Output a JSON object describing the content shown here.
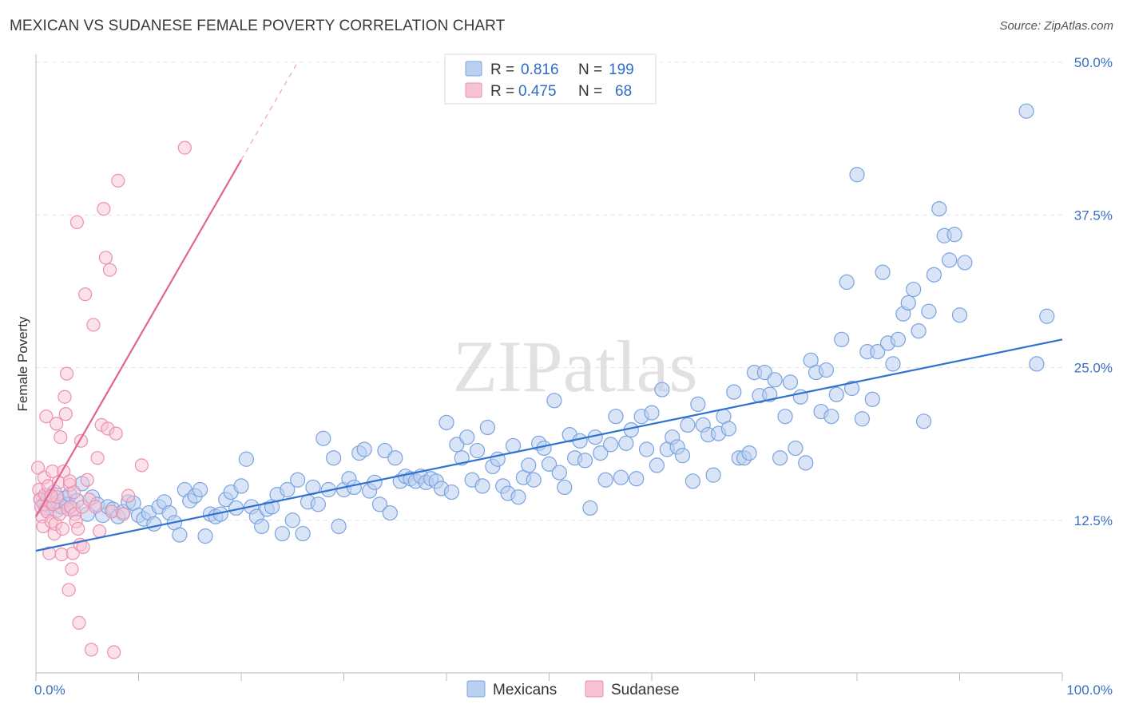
{
  "header": {
    "title": "MEXICAN VS SUDANESE FEMALE POVERTY CORRELATION CHART",
    "source": "Source: ZipAtlas.com"
  },
  "colors": {
    "blue_fill": "#b9d0f1",
    "blue_stroke": "#7aa3e0",
    "blue_line": "#2f72d0",
    "pink_fill": "#f7c3d3",
    "pink_stroke": "#ee8fae",
    "pink_line": "#e2658f",
    "tick_label": "#3a6fc4"
  },
  "chart_data": {
    "type": "scatter",
    "xlabel": "",
    "ylabel": "Female Poverty",
    "xlim": [
      0,
      100
    ],
    "ylim": [
      0,
      50
    ],
    "x_tick_labels": [
      "0.0%",
      "100.0%"
    ],
    "y_ticks": [
      12.5,
      25.0,
      37.5,
      50.0
    ],
    "y_tick_labels": [
      "12.5%",
      "25.0%",
      "37.5%",
      "50.0%"
    ],
    "grid": true,
    "watermark": "ZIPatlas",
    "legend_stats": [
      {
        "r_label": "R =",
        "r_value": "0.816",
        "n_label": "N =",
        "n_value": "199"
      },
      {
        "r_label": "R =",
        "r_value": "0.475",
        "n_label": "N =",
        "n_value": "68"
      }
    ],
    "series": [
      {
        "name": "Mexicans",
        "trend": {
          "x0": 0,
          "y0": 10.0,
          "x1": 100,
          "y1": 27.3
        },
        "points": [
          [
            0.5,
            14.2
          ],
          [
            0.8,
            13.8
          ],
          [
            1.0,
            13.5
          ],
          [
            1.2,
            14.5
          ],
          [
            1.5,
            13.9
          ],
          [
            1.8,
            14.8
          ],
          [
            2.0,
            13.3
          ],
          [
            2.2,
            14.0
          ],
          [
            2.5,
            13.6
          ],
          [
            2.8,
            14.3
          ],
          [
            3.0,
            13.8
          ],
          [
            3.3,
            14.6
          ],
          [
            3.6,
            13.4
          ],
          [
            4.0,
            14.1
          ],
          [
            4.5,
            15.5
          ],
          [
            5.0,
            13.0
          ],
          [
            5.5,
            14.4
          ],
          [
            6.0,
            13.8
          ],
          [
            6.5,
            12.9
          ],
          [
            7.0,
            13.6
          ],
          [
            7.5,
            13.4
          ],
          [
            8.0,
            12.8
          ],
          [
            8.5,
            13.2
          ],
          [
            9.0,
            14.0
          ],
          [
            9.5,
            13.9
          ],
          [
            10.0,
            12.9
          ],
          [
            10.5,
            12.6
          ],
          [
            11.0,
            13.1
          ],
          [
            11.5,
            12.2
          ],
          [
            12.0,
            13.6
          ],
          [
            12.5,
            14.0
          ],
          [
            13.0,
            13.1
          ],
          [
            13.5,
            12.3
          ],
          [
            14.0,
            11.3
          ],
          [
            14.5,
            15.0
          ],
          [
            15.0,
            14.1
          ],
          [
            15.5,
            14.5
          ],
          [
            16.0,
            15.0
          ],
          [
            16.5,
            11.2
          ],
          [
            17.0,
            13.0
          ],
          [
            17.5,
            12.8
          ],
          [
            18.0,
            13.0
          ],
          [
            18.5,
            14.2
          ],
          [
            19.0,
            14.8
          ],
          [
            19.5,
            13.5
          ],
          [
            20.0,
            15.3
          ],
          [
            20.5,
            17.5
          ],
          [
            21.0,
            13.6
          ],
          [
            21.5,
            12.8
          ],
          [
            22.0,
            12.0
          ],
          [
            22.5,
            13.4
          ],
          [
            23.0,
            13.6
          ],
          [
            23.5,
            14.6
          ],
          [
            24.0,
            11.4
          ],
          [
            24.5,
            15.0
          ],
          [
            25.0,
            12.5
          ],
          [
            25.5,
            15.8
          ],
          [
            26.0,
            11.4
          ],
          [
            26.5,
            14.0
          ],
          [
            27.0,
            15.2
          ],
          [
            27.5,
            13.8
          ],
          [
            28.0,
            19.2
          ],
          [
            28.5,
            15.0
          ],
          [
            29.0,
            17.6
          ],
          [
            29.5,
            12.0
          ],
          [
            30.0,
            15.0
          ],
          [
            30.5,
            15.9
          ],
          [
            31.0,
            15.2
          ],
          [
            31.5,
            18.0
          ],
          [
            32.0,
            18.3
          ],
          [
            32.5,
            14.9
          ],
          [
            33.0,
            15.6
          ],
          [
            33.5,
            13.8
          ],
          [
            34.0,
            18.2
          ],
          [
            34.5,
            13.1
          ],
          [
            35.0,
            17.6
          ],
          [
            35.5,
            15.7
          ],
          [
            36.0,
            16.1
          ],
          [
            36.5,
            15.9
          ],
          [
            37.0,
            15.7
          ],
          [
            37.5,
            16.1
          ],
          [
            38.0,
            15.6
          ],
          [
            38.5,
            15.9
          ],
          [
            39.0,
            15.7
          ],
          [
            39.5,
            15.1
          ],
          [
            40.0,
            20.5
          ],
          [
            40.5,
            14.8
          ],
          [
            41.0,
            18.7
          ],
          [
            41.5,
            17.6
          ],
          [
            42.0,
            19.3
          ],
          [
            42.5,
            15.8
          ],
          [
            43.0,
            18.2
          ],
          [
            43.5,
            15.3
          ],
          [
            44.0,
            20.1
          ],
          [
            44.5,
            16.9
          ],
          [
            45.0,
            17.5
          ],
          [
            45.5,
            15.3
          ],
          [
            46.0,
            14.7
          ],
          [
            46.5,
            18.6
          ],
          [
            47.0,
            14.4
          ],
          [
            47.5,
            16.0
          ],
          [
            48.0,
            17.0
          ],
          [
            48.5,
            15.8
          ],
          [
            49.0,
            18.8
          ],
          [
            49.5,
            18.4
          ],
          [
            50.0,
            17.1
          ],
          [
            50.5,
            22.3
          ],
          [
            51.0,
            16.4
          ],
          [
            51.5,
            15.2
          ],
          [
            52.0,
            19.5
          ],
          [
            52.5,
            17.6
          ],
          [
            53.0,
            19.0
          ],
          [
            53.5,
            17.4
          ],
          [
            54.0,
            13.5
          ],
          [
            54.5,
            19.3
          ],
          [
            55.0,
            18.0
          ],
          [
            55.5,
            15.8
          ],
          [
            56.0,
            18.7
          ],
          [
            56.5,
            21.0
          ],
          [
            57.0,
            16.0
          ],
          [
            57.5,
            18.8
          ],
          [
            58.0,
            19.9
          ],
          [
            58.5,
            15.9
          ],
          [
            59.0,
            21.0
          ],
          [
            59.5,
            18.3
          ],
          [
            60.0,
            21.3
          ],
          [
            60.5,
            17.0
          ],
          [
            61.0,
            23.2
          ],
          [
            61.5,
            18.3
          ],
          [
            62.0,
            19.3
          ],
          [
            62.5,
            18.5
          ],
          [
            63.0,
            17.8
          ],
          [
            63.5,
            20.3
          ],
          [
            64.0,
            15.7
          ],
          [
            64.5,
            22.0
          ],
          [
            65.0,
            20.3
          ],
          [
            65.5,
            19.5
          ],
          [
            66.0,
            16.2
          ],
          [
            66.5,
            19.6
          ],
          [
            67.0,
            21.0
          ],
          [
            67.5,
            20.0
          ],
          [
            68.0,
            23.0
          ],
          [
            68.5,
            17.6
          ],
          [
            69.0,
            17.6
          ],
          [
            69.5,
            18.0
          ],
          [
            70.0,
            24.6
          ],
          [
            70.5,
            22.7
          ],
          [
            71.0,
            24.6
          ],
          [
            71.5,
            22.8
          ],
          [
            72.0,
            24.0
          ],
          [
            72.5,
            17.6
          ],
          [
            73.0,
            21.0
          ],
          [
            73.5,
            23.8
          ],
          [
            74.0,
            18.4
          ],
          [
            74.5,
            22.6
          ],
          [
            75.0,
            17.2
          ],
          [
            75.5,
            25.6
          ],
          [
            76.0,
            24.6
          ],
          [
            76.5,
            21.4
          ],
          [
            77.0,
            24.8
          ],
          [
            77.5,
            21.0
          ],
          [
            78.0,
            22.8
          ],
          [
            78.5,
            27.3
          ],
          [
            79.0,
            32.0
          ],
          [
            79.5,
            23.3
          ],
          [
            80.0,
            40.8
          ],
          [
            80.5,
            20.8
          ],
          [
            81.0,
            26.3
          ],
          [
            81.5,
            22.4
          ],
          [
            82.0,
            26.3
          ],
          [
            82.5,
            32.8
          ],
          [
            83.0,
            27.0
          ],
          [
            83.5,
            25.3
          ],
          [
            84.0,
            27.3
          ],
          [
            84.5,
            29.4
          ],
          [
            85.0,
            30.3
          ],
          [
            85.5,
            31.4
          ],
          [
            86.0,
            28.0
          ],
          [
            86.5,
            20.6
          ],
          [
            87.0,
            29.6
          ],
          [
            87.5,
            32.6
          ],
          [
            88.0,
            38.0
          ],
          [
            88.5,
            35.8
          ],
          [
            89.0,
            33.8
          ],
          [
            89.5,
            35.9
          ],
          [
            90.0,
            29.3
          ],
          [
            90.5,
            33.6
          ],
          [
            96.5,
            46.0
          ],
          [
            97.5,
            25.3
          ],
          [
            98.5,
            29.2
          ]
        ]
      },
      {
        "name": "Sudanese",
        "trend": {
          "x0": 0,
          "y0": 12.8,
          "x1": 20,
          "y1": 42.0,
          "dash_to_x": 25.5,
          "dash_to_y": 50.0
        },
        "points": [
          [
            0.2,
            16.8
          ],
          [
            0.3,
            15.0
          ],
          [
            0.4,
            14.2
          ],
          [
            0.5,
            13.6
          ],
          [
            0.6,
            12.8
          ],
          [
            0.7,
            12.0
          ],
          [
            0.8,
            16.0
          ],
          [
            0.9,
            14.6
          ],
          [
            1.0,
            21.0
          ],
          [
            1.1,
            13.2
          ],
          [
            1.2,
            15.3
          ],
          [
            1.3,
            9.8
          ],
          [
            1.4,
            14.0
          ],
          [
            1.5,
            12.4
          ],
          [
            1.6,
            16.5
          ],
          [
            1.7,
            13.8
          ],
          [
            1.8,
            11.4
          ],
          [
            1.9,
            12.2
          ],
          [
            2.0,
            20.4
          ],
          [
            2.1,
            14.4
          ],
          [
            2.2,
            15.6
          ],
          [
            2.3,
            13.0
          ],
          [
            2.4,
            19.3
          ],
          [
            2.5,
            9.7
          ],
          [
            2.6,
            11.8
          ],
          [
            2.7,
            16.5
          ],
          [
            2.8,
            22.6
          ],
          [
            2.9,
            21.2
          ],
          [
            3.0,
            24.5
          ],
          [
            3.1,
            13.4
          ],
          [
            3.2,
            6.8
          ],
          [
            3.3,
            15.4
          ],
          [
            3.4,
            13.6
          ],
          [
            3.5,
            8.5
          ],
          [
            3.6,
            9.8
          ],
          [
            3.7,
            14.8
          ],
          [
            3.8,
            13.0
          ],
          [
            3.9,
            12.4
          ],
          [
            4.0,
            36.9
          ],
          [
            4.1,
            11.8
          ],
          [
            4.2,
            4.1
          ],
          [
            4.3,
            10.5
          ],
          [
            4.4,
            19.0
          ],
          [
            4.5,
            13.6
          ],
          [
            4.6,
            10.3
          ],
          [
            4.8,
            31.0
          ],
          [
            5.0,
            15.8
          ],
          [
            5.2,
            14.2
          ],
          [
            5.4,
            1.9
          ],
          [
            5.6,
            28.5
          ],
          [
            5.8,
            13.6
          ],
          [
            6.0,
            17.6
          ],
          [
            6.2,
            11.6
          ],
          [
            6.4,
            20.3
          ],
          [
            6.6,
            38.0
          ],
          [
            6.8,
            34.0
          ],
          [
            7.0,
            20.0
          ],
          [
            7.2,
            33.0
          ],
          [
            7.4,
            13.2
          ],
          [
            7.6,
            1.7
          ],
          [
            7.8,
            19.6
          ],
          [
            8.0,
            40.3
          ],
          [
            8.5,
            13.0
          ],
          [
            9.0,
            14.5
          ],
          [
            10.3,
            17.0
          ],
          [
            14.5,
            43.0
          ],
          [
            3.3,
            15.7
          ],
          [
            1.5,
            14.5
          ]
        ]
      }
    ],
    "legend_placement": "top-center",
    "bottom_legend": [
      "Mexicans",
      "Sudanese"
    ]
  }
}
